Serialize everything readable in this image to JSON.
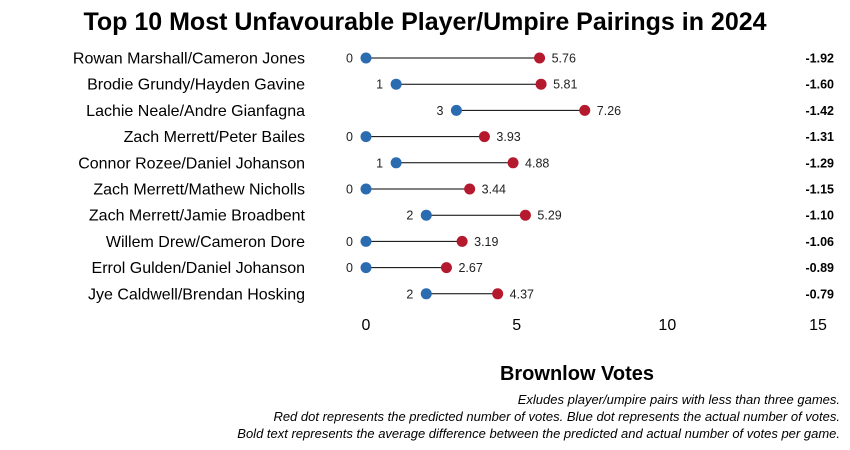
{
  "chart_data": {
    "type": "dumbbell",
    "title": "Top 10 Most Unfavourable Player/Umpire Pairings in 2024",
    "xlabel": "Brownlow Votes",
    "xlim": [
      0,
      15
    ],
    "xticks": [
      0,
      5,
      10,
      15
    ],
    "grid": false,
    "series": [
      {
        "name": "Actual",
        "color": "#2b6cb0"
      },
      {
        "name": "Predicted",
        "color": "#b5192e"
      }
    ],
    "rows": [
      {
        "label": "Rowan Marshall/Cameron Jones",
        "actual": 0,
        "actual_label": "0",
        "predicted": 5.76,
        "predicted_label": "5.76",
        "diff": "-1.92"
      },
      {
        "label": "Brodie Grundy/Hayden Gavine",
        "actual": 1,
        "actual_label": "1",
        "predicted": 5.81,
        "predicted_label": "5.81",
        "diff": "-1.60"
      },
      {
        "label": "Lachie Neale/Andre Gianfagna",
        "actual": 3,
        "actual_label": "3",
        "predicted": 7.26,
        "predicted_label": "7.26",
        "diff": "-1.42"
      },
      {
        "label": "Zach Merrett/Peter Bailes",
        "actual": 0,
        "actual_label": "0",
        "predicted": 3.93,
        "predicted_label": "3.93",
        "diff": "-1.31"
      },
      {
        "label": "Connor Rozee/Daniel Johanson",
        "actual": 1,
        "actual_label": "1",
        "predicted": 4.88,
        "predicted_label": "4.88",
        "diff": "-1.29"
      },
      {
        "label": "Zach Merrett/Mathew Nicholls",
        "actual": 0,
        "actual_label": "0",
        "predicted": 3.44,
        "predicted_label": "3.44",
        "diff": "-1.15"
      },
      {
        "label": "Zach Merrett/Jamie Broadbent",
        "actual": 2,
        "actual_label": "2",
        "predicted": 5.29,
        "predicted_label": "5.29",
        "diff": "-1.10"
      },
      {
        "label": "Willem Drew/Cameron Dore",
        "actual": 0,
        "actual_label": "0",
        "predicted": 3.19,
        "predicted_label": "3.19",
        "diff": "-1.06"
      },
      {
        "label": "Errol Gulden/Daniel Johanson",
        "actual": 0,
        "actual_label": "0",
        "predicted": 2.67,
        "predicted_label": "2.67",
        "diff": "-0.89"
      },
      {
        "label": "Jye Caldwell/Brendan Hosking",
        "actual": 2,
        "actual_label": "2",
        "predicted": 4.37,
        "predicted_label": "4.37",
        "diff": "-0.79"
      }
    ],
    "notes": [
      "Exludes player/umpire pairs with less than three games.",
      "Red dot represents the predicted number of votes. Blue dot represents the actual number of votes.",
      "Bold text represents the average difference between the predicted and actual number of votes per game."
    ]
  }
}
